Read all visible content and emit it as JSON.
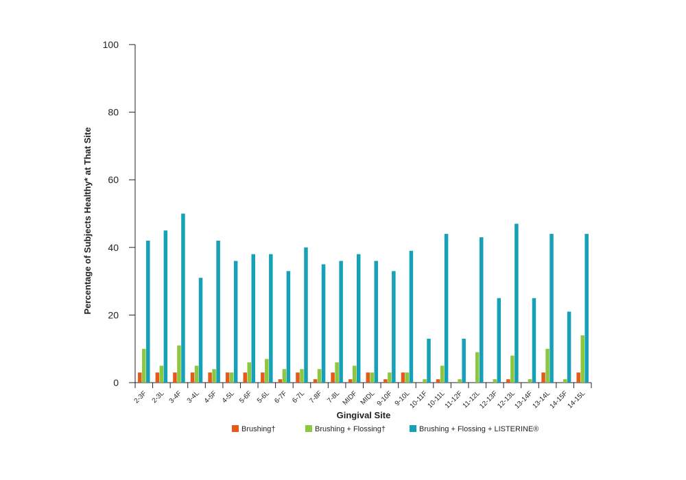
{
  "chart_data": {
    "type": "bar",
    "title": "",
    "xlabel": "Gingival Site",
    "ylabel": "Percentage of Subjects Healthy* at That Site",
    "ylim": [
      0,
      100
    ],
    "yticks": [
      "0",
      "20",
      "40",
      "60",
      "80",
      "100"
    ],
    "grid": false,
    "legend_position": "bottom",
    "categories": [
      "2-3F",
      "2-3L",
      "3-4F",
      "3-4L",
      "4-5F",
      "4-5L",
      "5-6F",
      "5-6L",
      "6-7F",
      "6-7L",
      "7-8F",
      "7-8L",
      "MIDF",
      "MIDL",
      "9-10F",
      "9-10L",
      "10-11F",
      "10-11L",
      "11-12F",
      "11-12L",
      "12-13F",
      "12-13L",
      "13-14F",
      "13-14L",
      "14-15F",
      "14-15L"
    ],
    "series": [
      {
        "name": "Brushing†",
        "color": "#e35a1a",
        "values": [
          3,
          3,
          3,
          3,
          3,
          3,
          3,
          3,
          1,
          3,
          1,
          3,
          1,
          3,
          1,
          3,
          0,
          1,
          0,
          0,
          0,
          1,
          0,
          3,
          0,
          3
        ]
      },
      {
        "name": "Brushing + Flossing†",
        "color": "#8dc63f",
        "values": [
          10,
          5,
          11,
          5,
          4,
          3,
          6,
          7,
          4,
          4,
          4,
          6,
          5,
          3,
          3,
          3,
          1,
          5,
          1,
          9,
          1,
          8,
          1,
          10,
          1,
          14
        ]
      },
      {
        "name": "Brushing + Flossing + LISTERINE®",
        "color": "#17a1b7",
        "values": [
          42,
          45,
          50,
          31,
          42,
          36,
          38,
          38,
          33,
          40,
          35,
          36,
          38,
          36,
          33,
          39,
          13,
          44,
          13,
          43,
          25,
          47,
          25,
          44,
          21,
          44
        ]
      }
    ]
  }
}
